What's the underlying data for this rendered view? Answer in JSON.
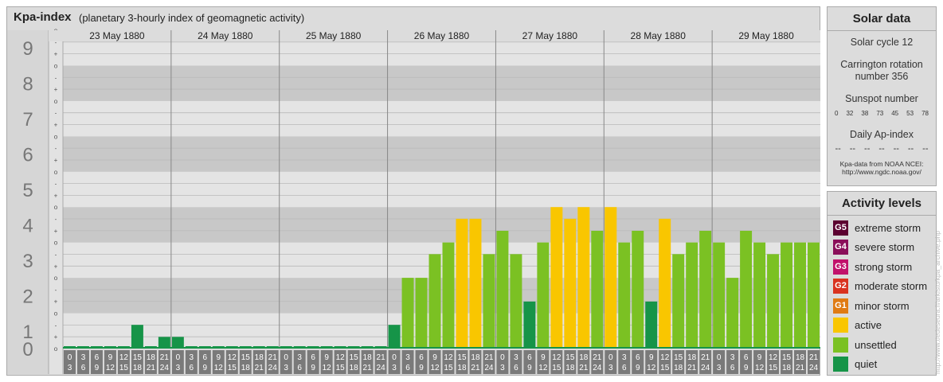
{
  "header": {
    "title": "Kpa-index",
    "subtitle": "(planetary 3-hourly index of geomagnetic activity)"
  },
  "chart_data": {
    "type": "bar",
    "y_axis": {
      "ylim": [
        0,
        9
      ],
      "major_ticks": [
        "0",
        "1",
        "2",
        "3",
        "4",
        "5",
        "6",
        "7",
        "8",
        "9"
      ],
      "minor_tick_labels": [
        "o",
        "+",
        "-",
        "o"
      ]
    },
    "days": [
      "23 May 1880",
      "24 May 1880",
      "25 May 1880",
      "26 May 1880",
      "27 May 1880",
      "28 May 1880",
      "29 May 1880"
    ],
    "interval_labels": [
      [
        "0",
        "3"
      ],
      [
        "3",
        "6"
      ],
      [
        "6",
        "9"
      ],
      [
        "9",
        "12"
      ],
      [
        "12",
        "15"
      ],
      [
        "15",
        "18"
      ],
      [
        "18",
        "21"
      ],
      [
        "21",
        "24"
      ]
    ],
    "values": [
      [
        0,
        0,
        0,
        0,
        0,
        0.67,
        0,
        0.33
      ],
      [
        0.33,
        0,
        0,
        0,
        0,
        0,
        0,
        0
      ],
      [
        0,
        0,
        0,
        0,
        0,
        0,
        0,
        0
      ],
      [
        0.67,
        2,
        2,
        2.67,
        3,
        3.67,
        3.67,
        2.67
      ],
      [
        3.33,
        2.67,
        1.33,
        3,
        4,
        3.67,
        4,
        3.33
      ],
      [
        4,
        3,
        3.33,
        1.33,
        3.67,
        2.67,
        3,
        3.33
      ],
      [
        3,
        2,
        3.33,
        3,
        2.67,
        3,
        3,
        3
      ]
    ],
    "colors": {
      "quiet": "#169448",
      "unsettled": "#7bc123",
      "active": "#f9c600"
    }
  },
  "solar": {
    "heading": "Solar data",
    "cycle": "Solar cycle 12",
    "carrington_1": "Carrington rotation",
    "carrington_2": "number 356",
    "sunspot_label": "Sunspot number",
    "sunspot_values": [
      "0",
      "32",
      "38",
      "73",
      "45",
      "53",
      "78"
    ],
    "ap_label": "Daily Ap-index",
    "ap_values": [
      "--",
      "--",
      "--",
      "--",
      "--",
      "--",
      "--"
    ],
    "source_1": "Kpa-data from NOAA NCEI:",
    "source_2": "http://www.ngdc.noaa.gov/"
  },
  "legend": {
    "heading": "Activity levels",
    "items": [
      {
        "badge": "G5",
        "label": "extreme storm",
        "color": "#5c0030"
      },
      {
        "badge": "G4",
        "label": "severe storm",
        "color": "#8a0f5a"
      },
      {
        "badge": "G3",
        "label": "strong storm",
        "color": "#c1126b"
      },
      {
        "badge": "G2",
        "label": "moderate storm",
        "color": "#d9321f"
      },
      {
        "badge": "G1",
        "label": "minor storm",
        "color": "#e07b14"
      },
      {
        "badge": "",
        "label": "active",
        "color": "#f9c600"
      },
      {
        "badge": "",
        "label": "unsettled",
        "color": "#7bc123"
      },
      {
        "badge": "",
        "label": "quiet",
        "color": "#169448"
      }
    ]
  },
  "watermark": "http://www.tiedeseura.fi/arkisto/kpa_archive.php"
}
